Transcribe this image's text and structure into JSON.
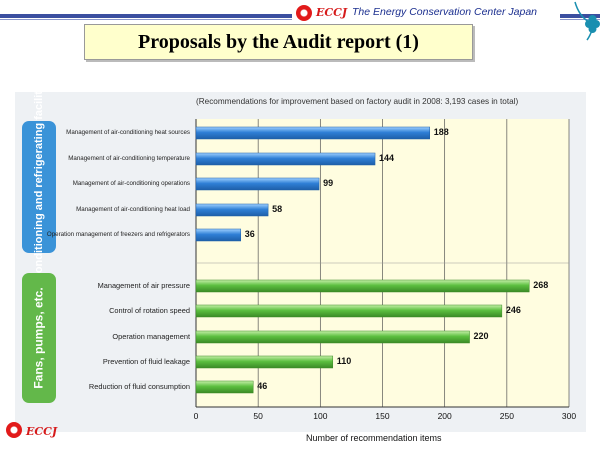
{
  "header": {
    "logo_text": "ECCJ",
    "org_name": "The Energy Conservation Center Japan"
  },
  "page_title": "Proposals by the Audit report (1)",
  "footer": {
    "logo_text": "ECCJ"
  },
  "colors": {
    "blue_bar": "#2f7fd6",
    "green_bar": "#5bbf3f",
    "aircon_group": "#3a93d8",
    "fans_group": "#63b84a",
    "plot_bg": "#fffde0",
    "panel_bg": "#eef1f4",
    "title_bg": "#ffffcc"
  },
  "chart_data": {
    "type": "bar",
    "orientation": "horizontal",
    "subtitle": "(Recommendations for improvement based on factory audit in 2008: 3,193 cases in total)",
    "xlabel": "Number of recommendation items",
    "xlim": [
      0,
      300
    ],
    "xticks": [
      "0",
      "50",
      "100",
      "150",
      "200",
      "250",
      "300"
    ],
    "grid": "vertical",
    "groups": [
      {
        "name": "Air-conditioning and refrigerating facilities",
        "color": "blue",
        "categories": [
          "Management of air-conditioning heat sources",
          "Management of air-conditioning temperature",
          "Management of air-conditioning operations",
          "Management of air-conditioning heat load",
          "Operation management of freezers and refrigerators"
        ],
        "values": [
          188,
          144,
          99,
          58,
          36
        ]
      },
      {
        "name": "Fans, pumps, etc.",
        "color": "green",
        "categories": [
          "Management of air pressure",
          "Control of rotation speed",
          "Operation management",
          "Prevention of fluid leakage",
          "Reduction of fluid consumption"
        ],
        "values": [
          268,
          246,
          220,
          110,
          46
        ]
      }
    ]
  }
}
